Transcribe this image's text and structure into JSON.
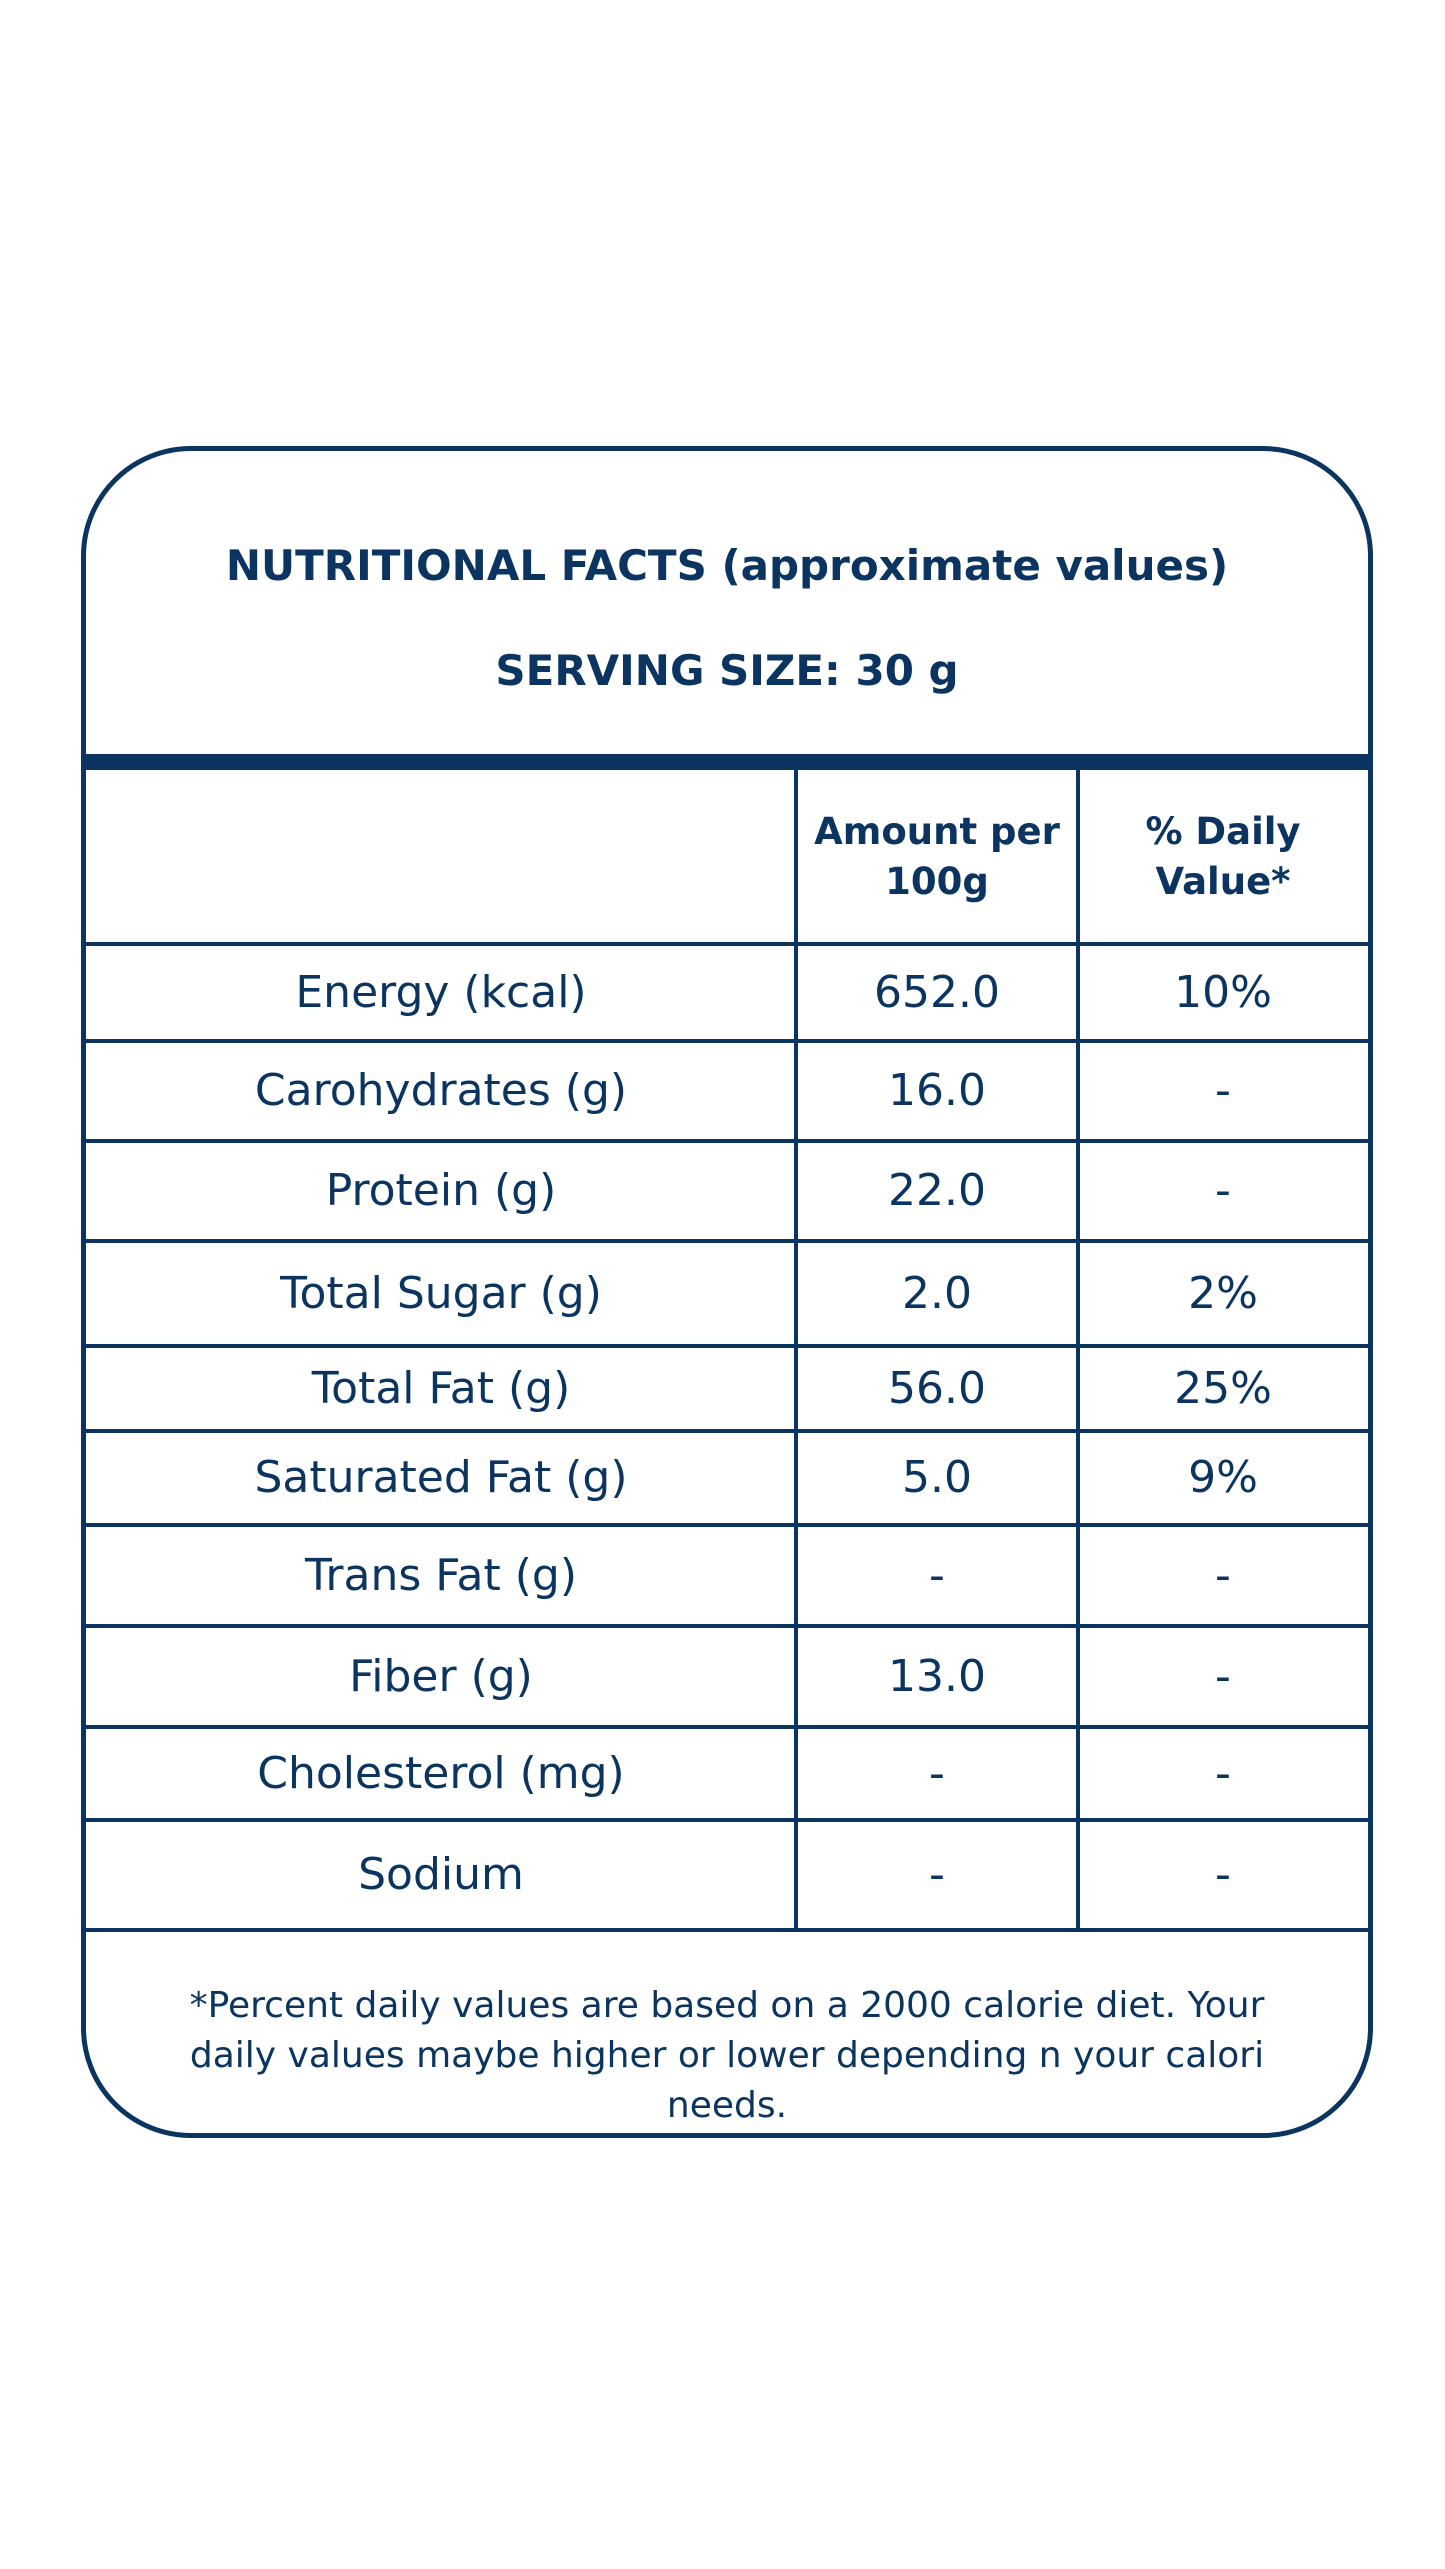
{
  "header": {
    "title": "NUTRITIONAL FACTS (approximate values)",
    "serving": "SERVING SIZE: 30 g"
  },
  "table": {
    "columns": [
      "",
      "Amount per 100g",
      "% Daily Value*"
    ],
    "rows": [
      {
        "nutrient": "Energy (kcal)",
        "amount": "652.0",
        "daily": "10%"
      },
      {
        "nutrient": "Carohydrates (g)",
        "amount": "16.0",
        "daily": "-"
      },
      {
        "nutrient": "Protein (g)",
        "amount": "22.0",
        "daily": "-"
      },
      {
        "nutrient": "Total Sugar (g)",
        "amount": "2.0",
        "daily": "2%"
      },
      {
        "nutrient": "Total Fat (g)",
        "amount": "56.0",
        "daily": "25%"
      },
      {
        "nutrient": "Saturated Fat (g)",
        "amount": "5.0",
        "daily": "9%"
      },
      {
        "nutrient": "Trans Fat (g)",
        "amount": "-",
        "daily": "-"
      },
      {
        "nutrient": "Fiber (g)",
        "amount": "13.0",
        "daily": "-"
      },
      {
        "nutrient": "Cholesterol (mg)",
        "amount": "-",
        "daily": "-"
      },
      {
        "nutrient": "Sodium",
        "amount": "-",
        "daily": "-"
      }
    ]
  },
  "footnote": "*Percent daily values are based on a 2000 calorie diet. Your daily values maybe higher or lower depending n your calori needs.",
  "colors": {
    "primary": "#0b3560",
    "background": "#ffffff"
  }
}
